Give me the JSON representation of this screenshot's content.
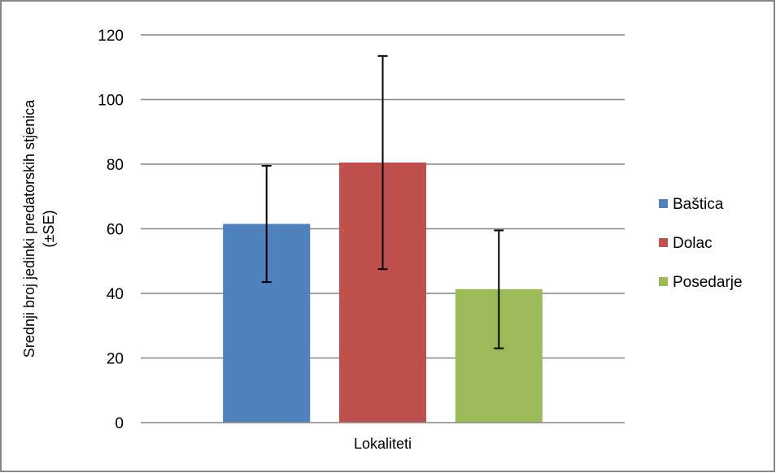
{
  "chart_data": {
    "type": "bar",
    "title": "",
    "xlabel": "Lokaliteti",
    "ylabel_line1": "Srednji broj jedinki predatorskih stjenica",
    "ylabel_line2": "(±SE)",
    "ylim": [
      0,
      120
    ],
    "yticks": [
      0,
      20,
      40,
      60,
      80,
      100,
      120
    ],
    "ytick_labels": [
      "0",
      "20",
      "40",
      "60",
      "80",
      "100",
      "120"
    ],
    "grid": true,
    "legend_position": "right",
    "series": [
      {
        "name": "Baštica",
        "value": 61.5,
        "error_low": 43.5,
        "error_high": 79.5,
        "color": "#4f81bd"
      },
      {
        "name": "Dolac",
        "value": 80.5,
        "error_low": 47.5,
        "error_high": 113.5,
        "color": "#c0504d"
      },
      {
        "name": "Posedarje",
        "value": 41.3,
        "error_low": 23.0,
        "error_high": 59.5,
        "color": "#9bbb59"
      }
    ]
  }
}
